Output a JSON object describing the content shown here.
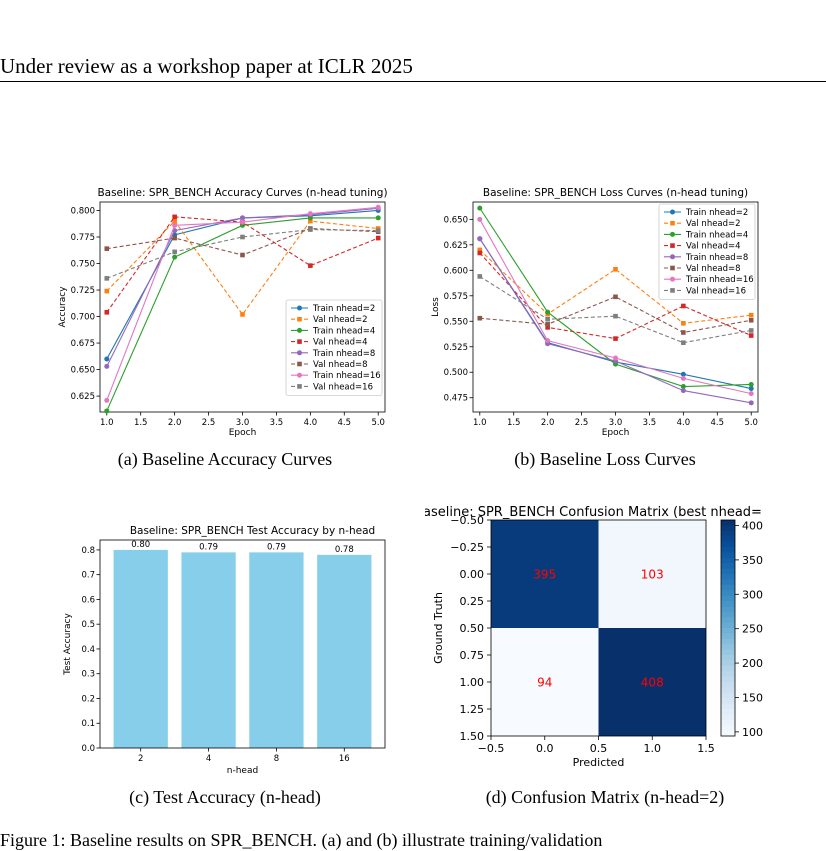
{
  "header": {
    "text": "Under review as a workshop paper at ICLR 2025"
  },
  "captions": {
    "a": "(a) Baseline Accuracy Curves",
    "b": "(b) Baseline Loss Curves",
    "c": "(c) Test Accuracy (n-head)",
    "d": "(d) Confusion Matrix (n-head=2)"
  },
  "figure_caption_partial": "Figure 1: Baseline results on SPR_BENCH. (a) and (b) illustrate training/validation",
  "chart_data": [
    {
      "id": "acc",
      "type": "line",
      "title": "Baseline: SPR_BENCH Accuracy Curves (n-head tuning)",
      "xlabel": "Epoch",
      "ylabel": "Accuracy",
      "xlim": [
        0.9,
        5.1
      ],
      "ylim": [
        0.61,
        0.808
      ],
      "xticks": [
        1.0,
        1.5,
        2.0,
        2.5,
        3.0,
        3.5,
        4.0,
        4.5,
        5.0
      ],
      "yticks": [
        0.625,
        0.65,
        0.675,
        0.7,
        0.725,
        0.75,
        0.775,
        0.8
      ],
      "legend": "lower-right",
      "x": [
        1,
        2,
        3,
        4,
        5
      ],
      "series": [
        {
          "name": "Train nhead=2",
          "color": "#1f77b4",
          "dash": false,
          "marker": "circle",
          "values": [
            0.66,
            0.777,
            0.793,
            0.795,
            0.8
          ]
        },
        {
          "name": "Val nhead=2",
          "color": "#ff7f0e",
          "dash": true,
          "marker": "square",
          "values": [
            0.724,
            0.79,
            0.702,
            0.79,
            0.783
          ]
        },
        {
          "name": "Train nhead=4",
          "color": "#2ca02c",
          "dash": false,
          "marker": "circle",
          "values": [
            0.611,
            0.756,
            0.786,
            0.793,
            0.793
          ]
        },
        {
          "name": "Val nhead=4",
          "color": "#d62728",
          "dash": true,
          "marker": "square",
          "values": [
            0.704,
            0.794,
            0.789,
            0.748,
            0.774
          ]
        },
        {
          "name": "Train nhead=8",
          "color": "#9467bd",
          "dash": false,
          "marker": "circle",
          "values": [
            0.653,
            0.781,
            0.793,
            0.796,
            0.802
          ]
        },
        {
          "name": "Val nhead=8",
          "color": "#8c564b",
          "dash": true,
          "marker": "square",
          "values": [
            0.764,
            0.774,
            0.758,
            0.783,
            0.78
          ]
        },
        {
          "name": "Train nhead=16",
          "color": "#e377c2",
          "dash": false,
          "marker": "circle",
          "values": [
            0.621,
            0.786,
            0.789,
            0.797,
            0.803
          ]
        },
        {
          "name": "Val nhead=16",
          "color": "#7f7f7f",
          "dash": true,
          "marker": "square",
          "values": [
            0.736,
            0.761,
            0.775,
            0.782,
            0.781
          ]
        }
      ]
    },
    {
      "id": "loss",
      "type": "line",
      "title": "Baseline: SPR_BENCH Loss Curves (n-head tuning)",
      "xlabel": "Epoch",
      "ylabel": "Loss",
      "xlim": [
        0.9,
        5.1
      ],
      "ylim": [
        0.461,
        0.667
      ],
      "xticks": [
        1.0,
        1.5,
        2.0,
        2.5,
        3.0,
        3.5,
        4.0,
        4.5,
        5.0
      ],
      "yticks": [
        0.475,
        0.5,
        0.525,
        0.55,
        0.575,
        0.6,
        0.625,
        0.65
      ],
      "legend": "upper-right",
      "x": [
        1,
        2,
        3,
        4,
        5
      ],
      "series": [
        {
          "name": "Train nhead=2",
          "color": "#1f77b4",
          "dash": false,
          "marker": "circle",
          "values": [
            0.631,
            0.529,
            0.51,
            0.498,
            0.484
          ]
        },
        {
          "name": "Val nhead=2",
          "color": "#ff7f0e",
          "dash": true,
          "marker": "square",
          "values": [
            0.62,
            0.557,
            0.601,
            0.548,
            0.556
          ]
        },
        {
          "name": "Train nhead=4",
          "color": "#2ca02c",
          "dash": false,
          "marker": "circle",
          "values": [
            0.661,
            0.559,
            0.508,
            0.486,
            0.488
          ]
        },
        {
          "name": "Val nhead=4",
          "color": "#d62728",
          "dash": true,
          "marker": "square",
          "values": [
            0.617,
            0.544,
            0.533,
            0.565,
            0.536
          ]
        },
        {
          "name": "Train nhead=8",
          "color": "#9467bd",
          "dash": false,
          "marker": "circle",
          "values": [
            0.631,
            0.528,
            0.511,
            0.482,
            0.47
          ]
        },
        {
          "name": "Val nhead=8",
          "color": "#8c564b",
          "dash": true,
          "marker": "square",
          "values": [
            0.553,
            0.547,
            0.574,
            0.539,
            0.551
          ]
        },
        {
          "name": "Train nhead=16",
          "color": "#e377c2",
          "dash": false,
          "marker": "circle",
          "values": [
            0.65,
            0.531,
            0.514,
            0.494,
            0.479
          ]
        },
        {
          "name": "Val nhead=16",
          "color": "#7f7f7f",
          "dash": true,
          "marker": "square",
          "values": [
            0.594,
            0.552,
            0.555,
            0.529,
            0.541
          ]
        }
      ]
    },
    {
      "id": "test",
      "type": "bar",
      "title": "Baseline: SPR_BENCH Test Accuracy by n-head",
      "xlabel": "n-head",
      "ylabel": "Test Accuracy",
      "categories": [
        "2",
        "4",
        "8",
        "16"
      ],
      "values": [
        0.8,
        0.79,
        0.79,
        0.78
      ],
      "data_labels": [
        "0.80",
        "0.79",
        "0.79",
        "0.78"
      ],
      "ylim": [
        0,
        0.84
      ],
      "yticks": [
        0.0,
        0.1,
        0.2,
        0.3,
        0.4,
        0.5,
        0.6,
        0.7,
        0.8
      ],
      "color": "#87ceeb"
    },
    {
      "id": "cm",
      "type": "heatmap",
      "title": "aseline: SPR_BENCH Confusion Matrix (best nhead=",
      "xlabel": "Predicted",
      "ylabel": "Ground Truth",
      "matrix": [
        [
          395,
          103
        ],
        [
          94,
          408
        ]
      ],
      "xlim": [
        -0.5,
        1.5
      ],
      "ylim": [
        -0.5,
        1.5
      ],
      "xticks": [
        "-0.5",
        "0.0",
        "0.5",
        "1.0",
        "1.5"
      ],
      "yticks": [
        "-0.50",
        "-0.25",
        "0.00",
        "0.25",
        "0.50",
        "0.75",
        "1.00",
        "1.25",
        "1.50"
      ],
      "colorbar_ticks": [
        100,
        150,
        200,
        250,
        300,
        350,
        400
      ],
      "colorbar_range": [
        94,
        408
      ],
      "colormap": "Blues",
      "annotation_color": "#ff0000"
    }
  ]
}
